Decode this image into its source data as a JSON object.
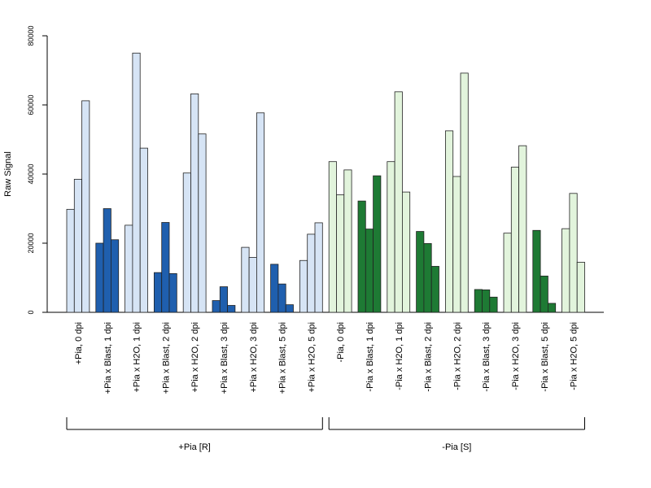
{
  "chart_data": {
    "type": "bar",
    "ylabel": "Raw Signal",
    "xlabel": "",
    "ylim": [
      0,
      80000
    ],
    "yticks": [
      0,
      20000,
      40000,
      60000,
      80000
    ],
    "grid": false,
    "legend": "none",
    "categories": [
      "+Pia, 0 dpi",
      "+Pia x Blast, 1 dpi",
      "+Pia x H2O, 1 dpi",
      "+Pia x Blast, 2 dpi",
      "+Pia x H2O, 2 dpi",
      "+Pia x Blast, 3 dpi",
      "+Pia x H2O, 3 dpi",
      "+Pia x Blast, 5 dpi",
      "+Pia x H2O, 5 dpi",
      "-Pia, 0 dpi",
      "-Pia x Blast, 1 dpi",
      "-Pia x H2O, 1 dpi",
      "-Pia x Blast, 2 dpi",
      "-Pia x H2O, 2 dpi",
      "-Pia x Blast, 3 dpi",
      "-Pia x H2O, 3 dpi",
      "-Pia x Blast, 5 dpi",
      "-Pia x H2O, 5 dpi"
    ],
    "replicates": [
      [
        29800,
        38500,
        61200
      ],
      [
        20000,
        30000,
        21000
      ],
      [
        25200,
        75000,
        47500
      ],
      [
        11500,
        26000,
        11200
      ],
      [
        40300,
        63200,
        51600
      ],
      [
        3400,
        7400,
        2000
      ],
      [
        18800,
        15900,
        57700
      ],
      [
        13900,
        8200,
        2200
      ],
      [
        15000,
        22600,
        25900
      ],
      [
        43600,
        34000,
        41200
      ],
      [
        32200,
        24100,
        39500
      ],
      [
        43600,
        63800,
        34800
      ],
      [
        23400,
        19900,
        13300
      ],
      [
        52500,
        39300,
        69200
      ],
      [
        6600,
        6500,
        4400
      ],
      [
        22900,
        42000,
        48200
      ],
      [
        23700,
        10500,
        2600
      ],
      [
        24200,
        34400,
        14500
      ]
    ],
    "bar_colors": [
      "#d6e4f5",
      "#1f5fae",
      "#d6e4f5",
      "#1f5fae",
      "#d6e4f5",
      "#1f5fae",
      "#d6e4f5",
      "#1f5fae",
      "#d6e4f5",
      "#e2f4dc",
      "#1e7a34",
      "#e2f4dc",
      "#1e7a34",
      "#e2f4dc",
      "#1e7a34",
      "#e2f4dc",
      "#1e7a34",
      "#e2f4dc"
    ],
    "groups": [
      {
        "label": "+Pia [R]",
        "start": 0,
        "end": 8
      },
      {
        "label": "-Pia [S]",
        "start": 9,
        "end": 17
      }
    ]
  }
}
